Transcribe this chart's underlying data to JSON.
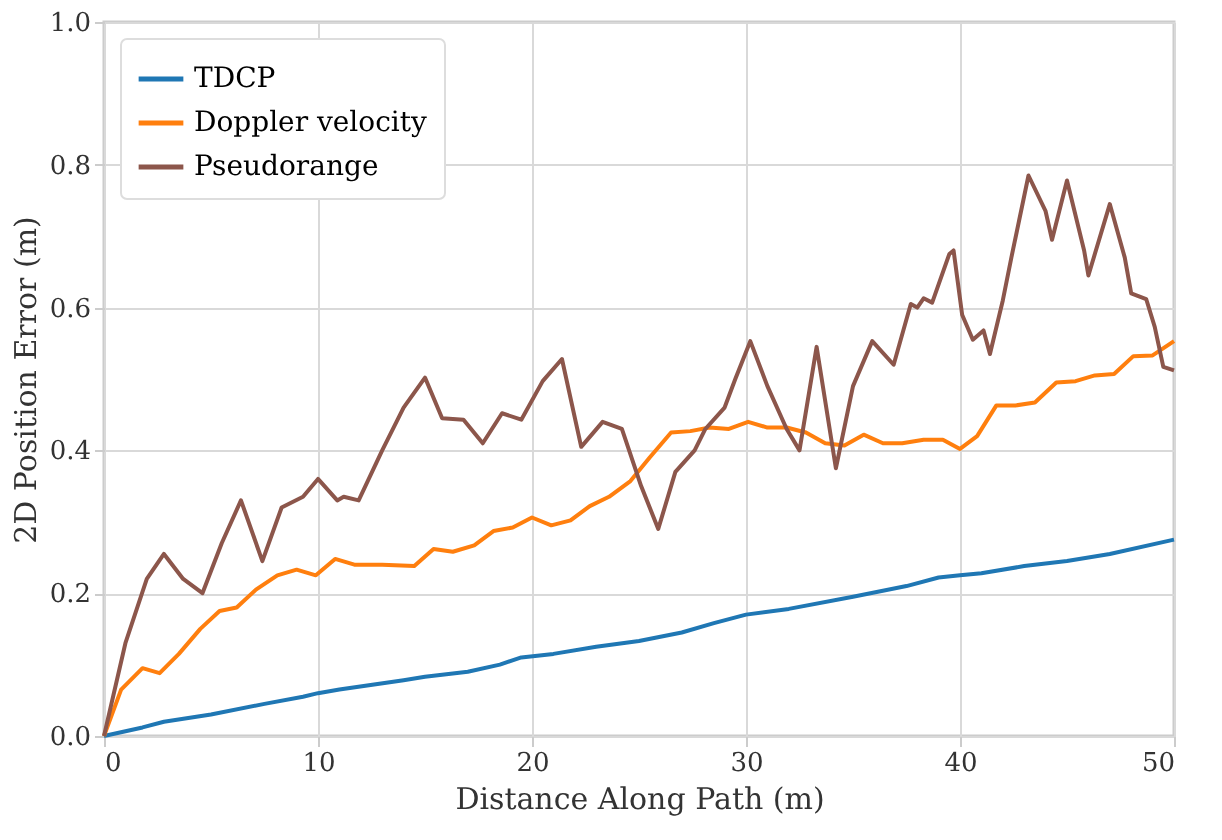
{
  "chart_data": {
    "type": "line",
    "xlabel": "Distance Along Path (m)",
    "ylabel": "2D Position Error (m)",
    "xlim": [
      0,
      50
    ],
    "xticks": [
      0,
      10,
      20,
      30,
      40,
      50
    ],
    "ylim": [
      0,
      1.0
    ],
    "yticks": [
      {
        "value": 0,
        "label": "0.0"
      },
      {
        "value": 0.2,
        "label": "0.2"
      },
      {
        "value": 0.4,
        "label": "0.4"
      },
      {
        "value": 0.6,
        "label": "0.6"
      },
      {
        "value": 0.8,
        "label": "0.8"
      },
      {
        "value": 1.0,
        "label": "1.0"
      }
    ],
    "grid": true,
    "legend": "top left",
    "marker": "none",
    "line_style": "solid",
    "series": [
      {
        "name": "TDCP",
        "color": "#1f77b4",
        "x": [
          0,
          1.8,
          2.8,
          5,
          7.5,
          9.3,
          10,
          11,
          14,
          15,
          17,
          18.5,
          19.5,
          21,
          23,
          25,
          27,
          28.5,
          30,
          32,
          35,
          37.5,
          39,
          40,
          41,
          43,
          45,
          47,
          50
        ],
        "values": [
          0,
          0.012,
          0.02,
          0.03,
          0.045,
          0.055,
          0.06,
          0.065,
          0.078,
          0.083,
          0.09,
          0.1,
          0.11,
          0.115,
          0.125,
          0.133,
          0.145,
          0.158,
          0.17,
          0.178,
          0.195,
          0.21,
          0.222,
          0.225,
          0.228,
          0.238,
          0.245,
          0.255,
          0.275
        ]
      },
      {
        "name": "Doppler velocity",
        "color": "#ff7f0e",
        "x": [
          0,
          0.8,
          1.8,
          2.6,
          3.5,
          4.5,
          5.4,
          6.2,
          7.1,
          8.1,
          9,
          9.9,
          10.8,
          11.7,
          13,
          14.5,
          15.4,
          16.3,
          17.3,
          18.2,
          19.1,
          20,
          20.9,
          21.8,
          22.7,
          23.6,
          24.6,
          25.5,
          26.5,
          27.4,
          28.3,
          29.2,
          30.1,
          31,
          31.9,
          32.8,
          33.7,
          34.6,
          35.5,
          36.4,
          37.3,
          38.3,
          39.2,
          40,
          40.8,
          41.7,
          42.6,
          43.5,
          44.5,
          45.4,
          46.3,
          47.2,
          48.1,
          49,
          50
        ],
        "values": [
          0,
          0.065,
          0.095,
          0.088,
          0.115,
          0.15,
          0.175,
          0.18,
          0.205,
          0.225,
          0.233,
          0.225,
          0.248,
          0.24,
          0.24,
          0.238,
          0.262,
          0.258,
          0.267,
          0.287,
          0.292,
          0.306,
          0.295,
          0.302,
          0.322,
          0.335,
          0.357,
          0.39,
          0.425,
          0.427,
          0.432,
          0.43,
          0.44,
          0.432,
          0.432,
          0.425,
          0.41,
          0.407,
          0.422,
          0.41,
          0.41,
          0.415,
          0.415,
          0.402,
          0.42,
          0.463,
          0.463,
          0.467,
          0.495,
          0.497,
          0.505,
          0.507,
          0.532,
          0.533,
          0.553
        ]
      },
      {
        "name": "Pseudorange",
        "color": "#8c564b",
        "x": [
          0,
          1,
          2,
          2.8,
          3.7,
          4.6,
          5.5,
          6.4,
          7.4,
          8.3,
          9.3,
          10,
          10.9,
          11.2,
          11.9,
          13,
          14,
          15,
          15.8,
          16.8,
          17.7,
          18.6,
          19.5,
          20.5,
          21.4,
          22.3,
          23.3,
          24.2,
          25.1,
          25.9,
          26.7,
          27.6,
          28.1,
          29,
          29.5,
          30.2,
          31,
          31.9,
          32.5,
          33.3,
          34.2,
          35,
          35.9,
          36.9,
          37.7,
          38,
          38.3,
          38.7,
          39.5,
          39.7,
          40.1,
          40.6,
          41.1,
          41.4,
          42,
          42.4,
          43.2,
          44,
          44.3,
          45,
          45.8,
          46,
          47,
          47.7,
          48,
          48.7,
          49.1,
          49.5,
          50
        ],
        "values": [
          0,
          0.13,
          0.22,
          0.255,
          0.22,
          0.2,
          0.27,
          0.33,
          0.245,
          0.32,
          0.335,
          0.36,
          0.33,
          0.335,
          0.33,
          0.4,
          0.46,
          0.502,
          0.445,
          0.443,
          0.41,
          0.452,
          0.443,
          0.497,
          0.528,
          0.405,
          0.44,
          0.43,
          0.35,
          0.29,
          0.37,
          0.4,
          0.43,
          0.46,
          0.5,
          0.553,
          0.49,
          0.43,
          0.4,
          0.545,
          0.375,
          0.49,
          0.553,
          0.52,
          0.605,
          0.6,
          0.613,
          0.607,
          0.675,
          0.68,
          0.59,
          0.555,
          0.568,
          0.535,
          0.61,
          0.67,
          0.785,
          0.735,
          0.695,
          0.778,
          0.68,
          0.645,
          0.745,
          0.67,
          0.62,
          0.612,
          0.573,
          0.517,
          0.512
        ]
      }
    ]
  }
}
